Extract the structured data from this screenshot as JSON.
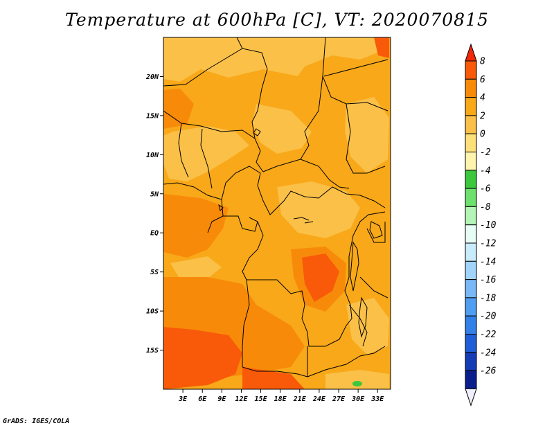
{
  "title": "Temperature at 600hPa [C], VT: 2020070815",
  "credit": "GrADS: IGES/COLA",
  "map": {
    "lat_labels": [
      "20N",
      "15N",
      "10N",
      "5N",
      "EQ",
      "5S",
      "10S",
      "15S"
    ],
    "lat_values": [
      20,
      15,
      10,
      5,
      0,
      -5,
      -10,
      -15
    ],
    "lon_labels": [
      "3E",
      "6E",
      "9E",
      "12E",
      "15E",
      "18E",
      "21E",
      "24E",
      "27E",
      "30E",
      "33E"
    ],
    "lon_values": [
      3,
      6,
      9,
      12,
      15,
      18,
      21,
      24,
      27,
      30,
      33
    ],
    "lon_range": [
      0,
      35
    ],
    "lat_range": [
      -20,
      25
    ]
  },
  "colorbar": {
    "labels": [
      "8",
      "6",
      "4",
      "2",
      "0",
      "-2",
      "-4",
      "-6",
      "-8",
      "-10",
      "-12",
      "-14",
      "-16",
      "-18",
      "-20",
      "-22",
      "-24",
      "-26"
    ],
    "colors": [
      "#f02808",
      "#f85a0a",
      "#f88a0a",
      "#f8a818",
      "#fac048",
      "#fde07a",
      "#fef4ae",
      "#3cc83c",
      "#6ee06e",
      "#b4f4b4",
      "#e6fcf4",
      "#c8ecfc",
      "#a0d4fa",
      "#78b8f6",
      "#509ef2",
      "#3280e8",
      "#1e5ed6",
      "#143cb4",
      "#0a1e8c",
      "#f0f0fc"
    ]
  }
}
